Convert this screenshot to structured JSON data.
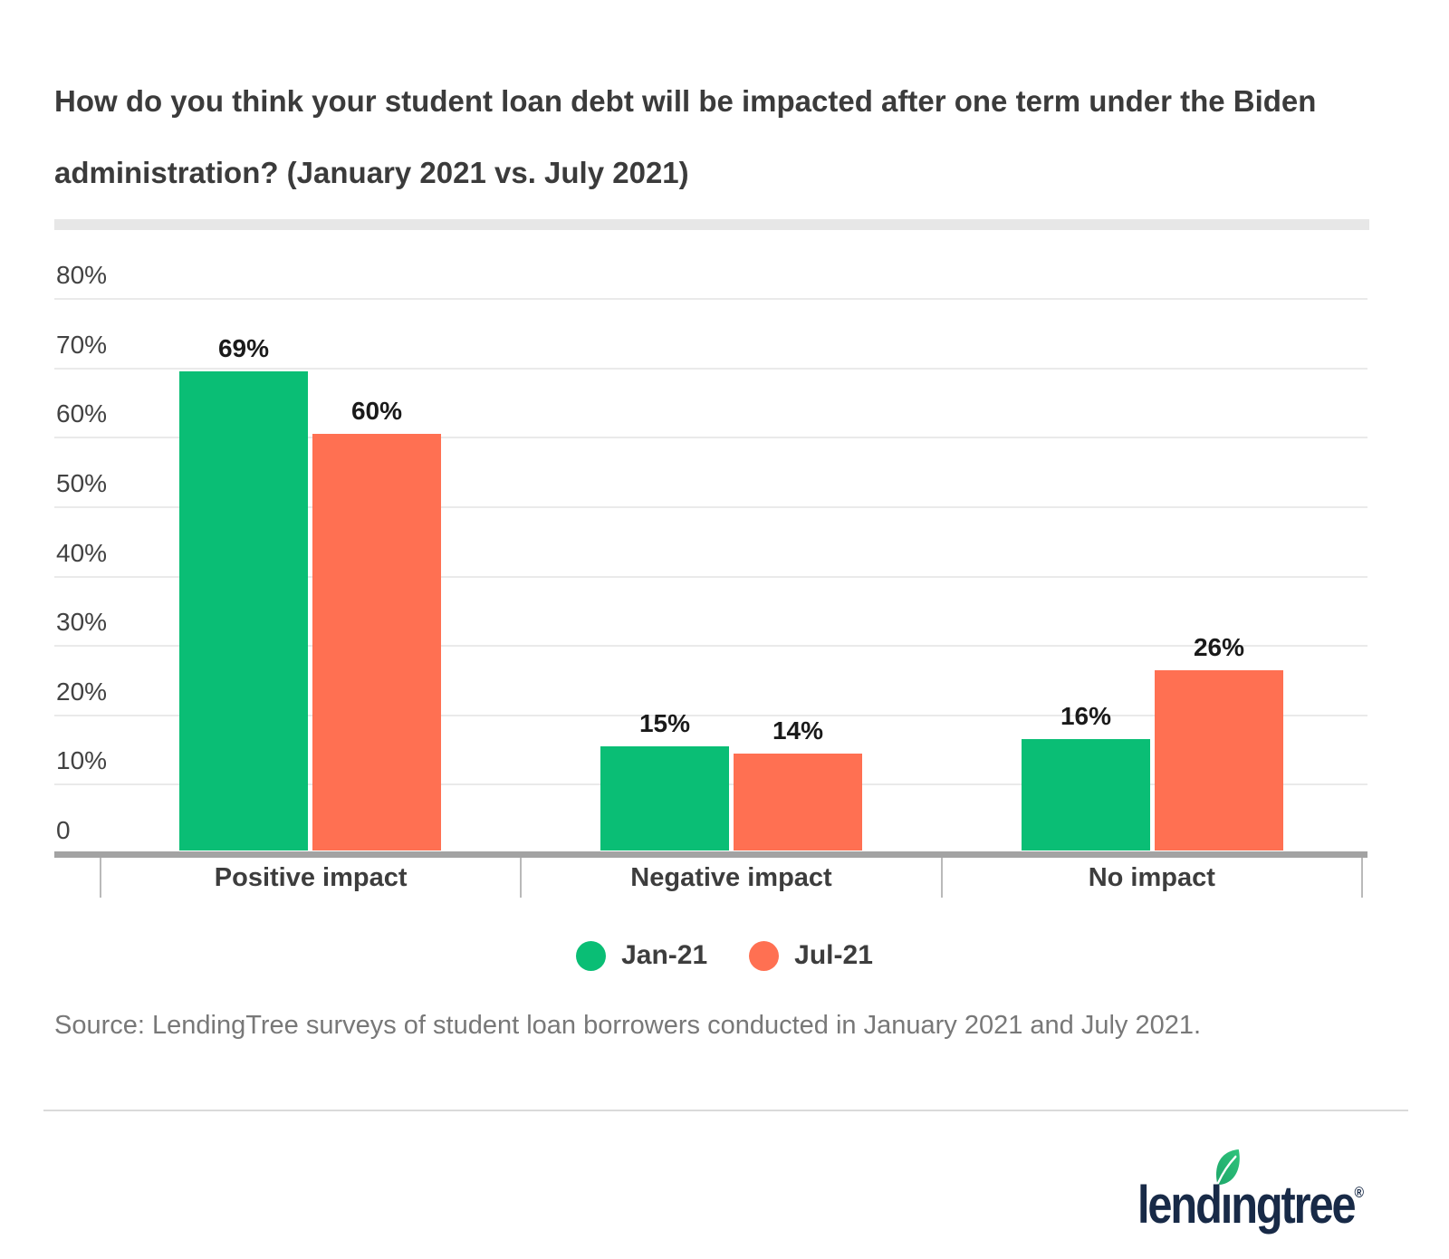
{
  "page": {
    "title_line1": "How do you think your student loan debt will be impacted after one term under the Biden",
    "title_line2": "administration? (January 2021 vs. July 2021)",
    "source": "Source: LendingTree surveys of student loan borrowers conducted in January 2021 and July 2021.",
    "logo": {
      "text": "lendingtree",
      "text_before_leaf": "lend",
      "leaf_letter": "ı",
      "text_after_leaf": "ngtree",
      "registered_mark": "®",
      "navy_color": "#182a47",
      "leaf_green_dark": "#1ea76a",
      "leaf_green_light": "#2fc47c"
    }
  },
  "chart_data": {
    "type": "bar",
    "title": "How do you think your student loan debt will be impacted after one term under the Biden administration? (January 2021 vs. July 2021)",
    "categories": [
      "Positive impact",
      "Negative impact",
      "No impact"
    ],
    "series": [
      {
        "name": "Jan-21",
        "color": "#0abe75",
        "values": [
          69,
          15,
          16
        ]
      },
      {
        "name": "Jul-21",
        "color": "#ff7052",
        "values": [
          60,
          14,
          26
        ]
      }
    ],
    "value_labels": [
      [
        "69%",
        "15%",
        "16%"
      ],
      [
        "60%",
        "14%",
        "26%"
      ]
    ],
    "y_ticks": [
      {
        "v": 80,
        "label": "80%"
      },
      {
        "v": 70,
        "label": "70%"
      },
      {
        "v": 60,
        "label": "60%"
      },
      {
        "v": 50,
        "label": "50%"
      },
      {
        "v": 40,
        "label": "40%"
      },
      {
        "v": 30,
        "label": "30%"
      },
      {
        "v": 20,
        "label": "20%"
      },
      {
        "v": 10,
        "label": "10%"
      },
      {
        "v": 0,
        "label": "0"
      }
    ],
    "ylim": [
      0,
      80
    ],
    "grid": true,
    "legend_position": "bottom"
  }
}
